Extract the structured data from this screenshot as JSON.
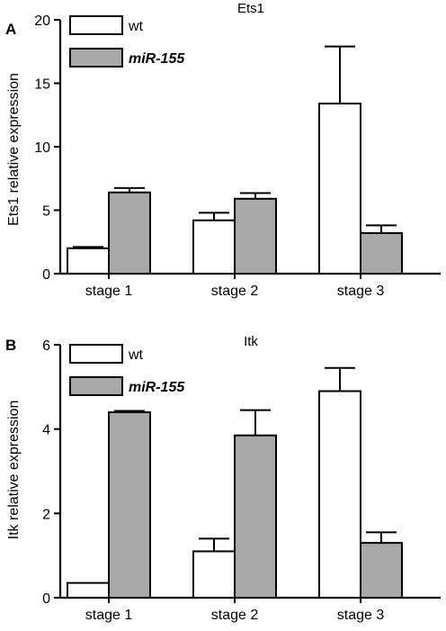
{
  "chart_data": [
    {
      "panel": "A",
      "type": "bar",
      "title": "Ets1",
      "xlabel": "",
      "ylabel": "Ets1 relative expression",
      "ylim": [
        0,
        20
      ],
      "yticks": [
        0,
        5,
        10,
        15,
        20
      ],
      "categories": [
        "stage 1",
        "stage 2",
        "stage 3"
      ],
      "legend_position": "top-left",
      "grid": false,
      "series": [
        {
          "name": "wt",
          "fill": "#ffffff",
          "italic": false,
          "values": [
            2.0,
            4.2,
            13.4
          ],
          "errors": [
            0.1,
            0.6,
            4.5
          ]
        },
        {
          "name": "miR-155",
          "fill": "#a8a8a8",
          "italic": true,
          "values": [
            6.4,
            5.9,
            3.2
          ],
          "errors": [
            0.35,
            0.45,
            0.6
          ]
        }
      ]
    },
    {
      "panel": "B",
      "type": "bar",
      "title": "Itk",
      "xlabel": "",
      "ylabel": "Itk relative expression",
      "ylim": [
        0,
        6
      ],
      "yticks": [
        0,
        2,
        4,
        6
      ],
      "categories": [
        "stage 1",
        "stage 2",
        "stage 3"
      ],
      "legend_position": "top-left",
      "grid": false,
      "series": [
        {
          "name": "wt",
          "fill": "#ffffff",
          "italic": false,
          "values": [
            0.35,
            1.1,
            4.9
          ],
          "errors": [
            0.0,
            0.3,
            0.55
          ]
        },
        {
          "name": "miR-155",
          "fill": "#a8a8a8",
          "italic": true,
          "values": [
            4.4,
            3.85,
            1.3
          ],
          "errors": [
            0.03,
            0.6,
            0.25
          ]
        }
      ]
    }
  ]
}
